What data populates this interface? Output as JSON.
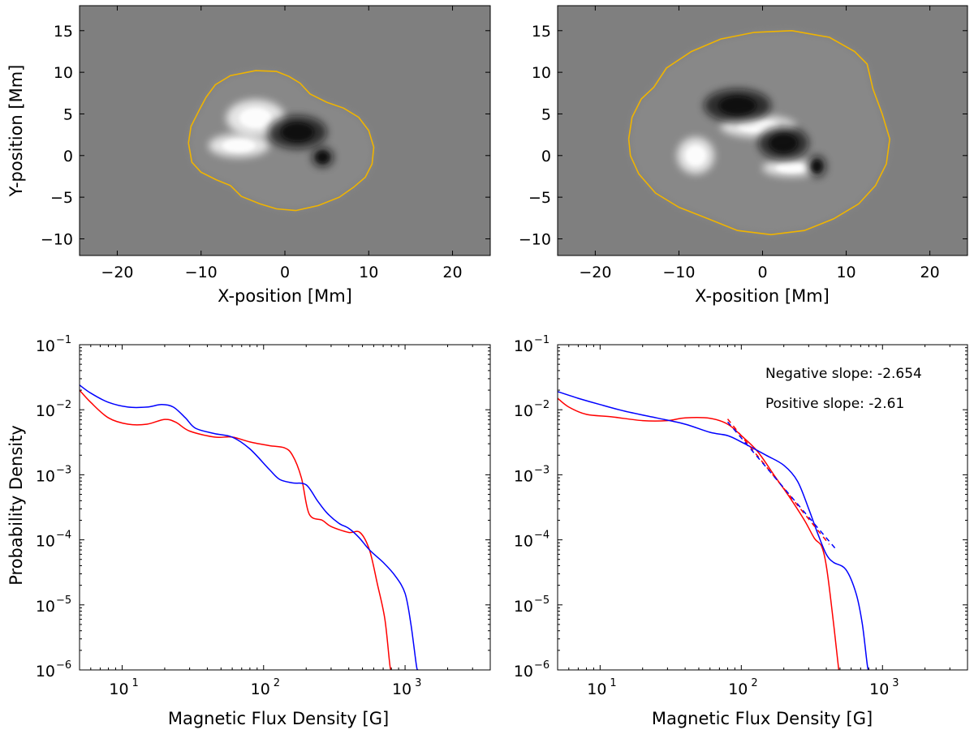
{
  "chart_data": [
    {
      "type": "heatmap",
      "panel": "top-left",
      "xlabel": "X-position [Mm]",
      "ylabel": "Y-position [Mm]",
      "xlim": [
        -24.5,
        24.5
      ],
      "ylim": [
        -12,
        18
      ],
      "xticks": [
        -20,
        -10,
        0,
        10,
        20
      ],
      "yticks": [
        -10,
        -5,
        0,
        5,
        10,
        15
      ],
      "background_color": "#7f7f7f",
      "contour_color": "#f0b400",
      "contour": [
        [
          -11.5,
          1.5
        ],
        [
          -11.2,
          3.5
        ],
        [
          -10.2,
          5.5
        ],
        [
          -9.4,
          7
        ],
        [
          -8.3,
          8.5
        ],
        [
          -6.5,
          9.6
        ],
        [
          -3.5,
          10.2
        ],
        [
          -1,
          10.1
        ],
        [
          0.5,
          9.5
        ],
        [
          1.8,
          8.7
        ],
        [
          3,
          7.4
        ],
        [
          5,
          6.4
        ],
        [
          7,
          5.7
        ],
        [
          8.8,
          4.6
        ],
        [
          10,
          3
        ],
        [
          10.6,
          1
        ],
        [
          10.4,
          -1
        ],
        [
          9.6,
          -2.6
        ],
        [
          8.2,
          -3.8
        ],
        [
          6.5,
          -5
        ],
        [
          4,
          -6
        ],
        [
          1.3,
          -6.6
        ],
        [
          -1,
          -6.4
        ],
        [
          -3,
          -5.8
        ],
        [
          -5.2,
          -4.9
        ],
        [
          -6.5,
          -3.6
        ],
        [
          -8.2,
          -2.9
        ],
        [
          -10,
          -2
        ],
        [
          -11.1,
          -0.8
        ],
        [
          -11.5,
          1.5
        ]
      ],
      "features": [
        {
          "kind": "positive",
          "x": -5.5,
          "y": 1.2,
          "rx": 3.6,
          "ry": 1.4
        },
        {
          "kind": "positive",
          "x": -3.5,
          "y": 4.5,
          "rx": 3.5,
          "ry": 2.2
        },
        {
          "kind": "negative",
          "x": 4.5,
          "y": -0.2,
          "rx": 1.3,
          "ry": 1.2
        },
        {
          "kind": "negative",
          "x": 1.5,
          "y": 2.8,
          "rx": 3.5,
          "ry": 2.0
        }
      ]
    },
    {
      "type": "heatmap",
      "panel": "top-right",
      "xlabel": "X-position [Mm]",
      "ylabel": "",
      "xlim": [
        -24.5,
        24.5
      ],
      "ylim": [
        -12,
        18
      ],
      "xticks": [
        -20,
        -10,
        0,
        10,
        20
      ],
      "yticks": [
        -10,
        -5,
        0,
        5,
        10,
        15
      ],
      "background_color": "#7f7f7f",
      "contour_color": "#f0b400",
      "contour": [
        [
          -16,
          2
        ],
        [
          -15.6,
          4.6
        ],
        [
          -14.5,
          6.8
        ],
        [
          -13,
          8.2
        ],
        [
          -11.5,
          10.5
        ],
        [
          -8.5,
          12.5
        ],
        [
          -5,
          14
        ],
        [
          -1,
          14.8
        ],
        [
          3.5,
          15
        ],
        [
          8,
          14.2
        ],
        [
          11,
          12.5
        ],
        [
          12.5,
          11
        ],
        [
          13.2,
          8
        ],
        [
          14.3,
          5
        ],
        [
          15.2,
          2
        ],
        [
          14.8,
          -1
        ],
        [
          13.5,
          -3.6
        ],
        [
          11.5,
          -5.8
        ],
        [
          8.5,
          -7.6
        ],
        [
          5,
          -9
        ],
        [
          1,
          -9.5
        ],
        [
          -3,
          -9
        ],
        [
          -6.5,
          -7.6
        ],
        [
          -10,
          -6.2
        ],
        [
          -12.8,
          -4.5
        ],
        [
          -14.8,
          -2.2
        ],
        [
          -15.8,
          0
        ],
        [
          -16,
          2
        ]
      ],
      "features": [
        {
          "kind": "positive",
          "x": -8.0,
          "y": 0.0,
          "rx": 2.2,
          "ry": 2.2
        },
        {
          "kind": "positive",
          "x": -0.5,
          "y": 3.5,
          "rx": 4.5,
          "ry": 1.3
        },
        {
          "kind": "positive",
          "x": 3.5,
          "y": -1.5,
          "rx": 3.5,
          "ry": 1.0
        },
        {
          "kind": "negative",
          "x": 6.5,
          "y": -1.3,
          "rx": 1.1,
          "ry": 1.3
        },
        {
          "kind": "negative",
          "x": -3.0,
          "y": 6.0,
          "rx": 4.0,
          "ry": 2.0
        },
        {
          "kind": "negative",
          "x": 2.5,
          "y": 1.5,
          "rx": 3.0,
          "ry": 2.0
        }
      ]
    },
    {
      "type": "line",
      "panel": "bottom-left",
      "xscale": "log",
      "yscale": "log",
      "xlabel": "Magnetic Flux Density [G]",
      "ylabel": "Probability Density",
      "xlim": [
        5,
        4000
      ],
      "ylim": [
        1e-06,
        0.1
      ],
      "xticks": [
        {
          "base": "10",
          "exp": "1",
          "value": 10
        },
        {
          "base": "10",
          "exp": "2",
          "value": 100
        },
        {
          "base": "10",
          "exp": "3",
          "value": 1000
        }
      ],
      "yticks": [
        {
          "base": "10",
          "exp": "-6",
          "value": 1e-06
        },
        {
          "base": "10",
          "exp": "-5",
          "value": 1e-05
        },
        {
          "base": "10",
          "exp": "-4",
          "value": 0.0001
        },
        {
          "base": "10",
          "exp": "-3",
          "value": 0.001
        },
        {
          "base": "10",
          "exp": "-2",
          "value": 0.01
        },
        {
          "base": "10",
          "exp": "-1",
          "value": 0.1
        }
      ],
      "series": [
        {
          "name": "red",
          "color": "#ff0000",
          "points": [
            [
              5,
              0.02
            ],
            [
              6,
              0.013
            ],
            [
              8,
              0.0075
            ],
            [
              11,
              0.006
            ],
            [
              15,
              0.006
            ],
            [
              20,
              0.0071
            ],
            [
              24,
              0.0064
            ],
            [
              30,
              0.0047
            ],
            [
              45,
              0.0038
            ],
            [
              60,
              0.0038
            ],
            [
              80,
              0.0032
            ],
            [
              110,
              0.0028
            ],
            [
              140,
              0.0026
            ],
            [
              160,
              0.002
            ],
            [
              185,
              0.0009
            ],
            [
              210,
              0.00025
            ],
            [
              260,
              0.0002
            ],
            [
              300,
              0.00016
            ],
            [
              400,
              0.00013
            ],
            [
              480,
              0.00013
            ],
            [
              560,
              7e-05
            ],
            [
              640,
              2e-05
            ],
            [
              720,
              6e-06
            ],
            [
              780,
              1.2e-06
            ],
            [
              800,
              1e-06
            ]
          ]
        },
        {
          "name": "blue",
          "color": "#0000ff",
          "points": [
            [
              5,
              0.024
            ],
            [
              6,
              0.018
            ],
            [
              8,
              0.013
            ],
            [
              11,
              0.011
            ],
            [
              15,
              0.011
            ],
            [
              19,
              0.012
            ],
            [
              23,
              0.011
            ],
            [
              28,
              0.0075
            ],
            [
              33,
              0.0052
            ],
            [
              45,
              0.0043
            ],
            [
              60,
              0.0038
            ],
            [
              80,
              0.0025
            ],
            [
              110,
              0.0012
            ],
            [
              130,
              0.00085
            ],
            [
              160,
              0.00075
            ],
            [
              200,
              0.0007
            ],
            [
              240,
              0.0004
            ],
            [
              280,
              0.00026
            ],
            [
              340,
              0.00018
            ],
            [
              400,
              0.00015
            ],
            [
              470,
              0.00011
            ],
            [
              560,
              7e-05
            ],
            [
              700,
              4.5e-05
            ],
            [
              850,
              2.8e-05
            ],
            [
              1000,
              1.5e-05
            ],
            [
              1100,
              5e-06
            ],
            [
              1200,
              1.2e-06
            ],
            [
              1230,
              1e-06
            ]
          ]
        }
      ]
    },
    {
      "type": "line",
      "panel": "bottom-right",
      "xscale": "log",
      "yscale": "log",
      "xlabel": "Magnetic Flux Density [G]",
      "ylabel": "",
      "xlim": [
        5,
        4000
      ],
      "ylim": [
        1e-06,
        0.1
      ],
      "xticks": [
        {
          "base": "10",
          "exp": "1",
          "value": 10
        },
        {
          "base": "10",
          "exp": "2",
          "value": 100
        },
        {
          "base": "10",
          "exp": "3",
          "value": 1000
        }
      ],
      "yticks": [
        {
          "base": "10",
          "exp": "-6",
          "value": 1e-06
        },
        {
          "base": "10",
          "exp": "-5",
          "value": 1e-05
        },
        {
          "base": "10",
          "exp": "-4",
          "value": 0.0001
        },
        {
          "base": "10",
          "exp": "-3",
          "value": 0.001
        },
        {
          "base": "10",
          "exp": "-2",
          "value": 0.01
        },
        {
          "base": "10",
          "exp": "-1",
          "value": 0.1
        }
      ],
      "annotations": [
        "Negative slope: -2.654",
        "Positive slope: -2.61"
      ],
      "series": [
        {
          "name": "red",
          "color": "#ff0000",
          "points": [
            [
              5,
              0.015
            ],
            [
              6,
              0.011
            ],
            [
              8,
              0.0085
            ],
            [
              12,
              0.0078
            ],
            [
              20,
              0.0068
            ],
            [
              30,
              0.0068
            ],
            [
              40,
              0.0075
            ],
            [
              60,
              0.0074
            ],
            [
              80,
              0.006
            ],
            [
              100,
              0.004
            ],
            [
              130,
              0.0023
            ],
            [
              170,
              0.001
            ],
            [
              220,
              0.00045
            ],
            [
              280,
              0.0002
            ],
            [
              330,
              0.000105
            ],
            [
              370,
              8e-05
            ],
            [
              400,
              4e-05
            ],
            [
              440,
              8e-06
            ],
            [
              480,
              1.5e-06
            ],
            [
              490,
              1e-06
            ]
          ]
        },
        {
          "name": "blue",
          "color": "#0000ff",
          "points": [
            [
              5,
              0.019
            ],
            [
              7,
              0.015
            ],
            [
              10,
              0.012
            ],
            [
              15,
              0.0095
            ],
            [
              25,
              0.0075
            ],
            [
              40,
              0.006
            ],
            [
              60,
              0.0045
            ],
            [
              80,
              0.004
            ],
            [
              100,
              0.0032
            ],
            [
              150,
              0.002
            ],
            [
              200,
              0.0014
            ],
            [
              250,
              0.0008
            ],
            [
              300,
              0.0003
            ],
            [
              350,
              0.00012
            ],
            [
              400,
              6e-05
            ],
            [
              450,
              4.5e-05
            ],
            [
              550,
              3.5e-05
            ],
            [
              650,
              1.5e-05
            ],
            [
              720,
              5e-06
            ],
            [
              780,
              1.2e-06
            ],
            [
              800,
              1e-06
            ]
          ]
        },
        {
          "name": "negative-fit",
          "color": "#ff0000",
          "dash": "6,5",
          "points": [
            [
              80,
              0.0072
            ],
            [
              420,
              8.5e-05
            ]
          ]
        },
        {
          "name": "positive-fit",
          "color": "#0000ff",
          "dash": "6,5",
          "points": [
            [
              80,
              0.0065
            ],
            [
              460,
              7.5e-05
            ]
          ]
        }
      ]
    }
  ]
}
